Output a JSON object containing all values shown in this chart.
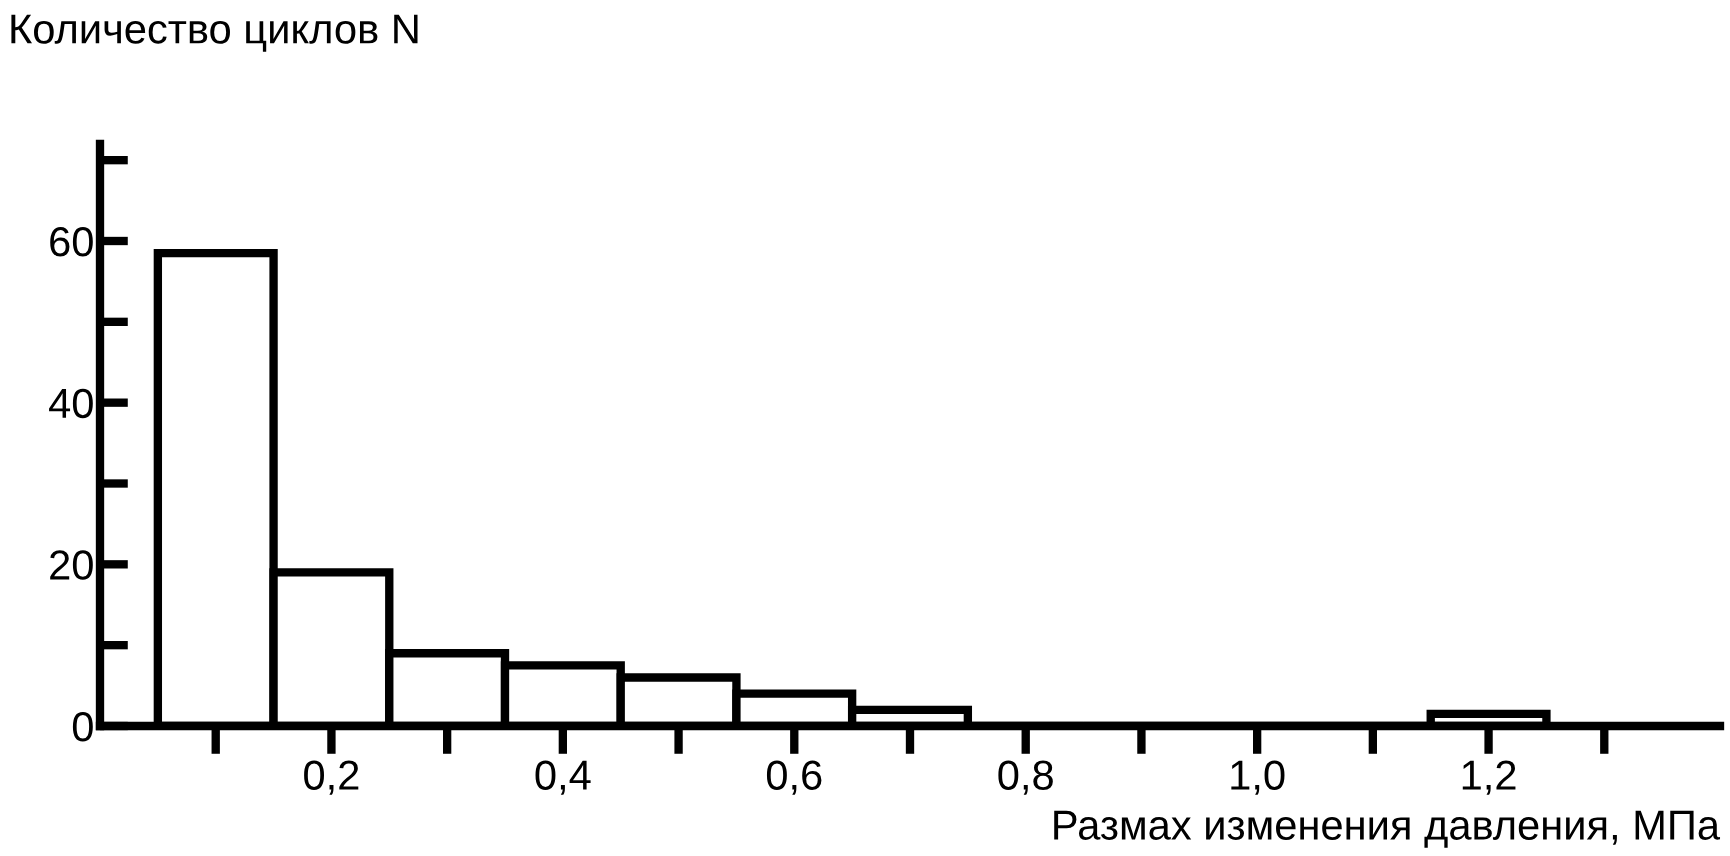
{
  "chart_data": {
    "type": "histogram",
    "xlabel": "Размах изменения давления, МПа",
    "ylabel": "Количество циклов N",
    "bins": [
      0.05,
      0.15,
      0.25,
      0.35,
      0.45,
      0.55,
      0.65,
      0.75,
      0.85,
      0.95,
      1.05,
      1.15,
      1.25
    ],
    "values": [
      58.5,
      19,
      9,
      7.5,
      6,
      4,
      2,
      0,
      0,
      0,
      0,
      1.5
    ],
    "color": "#000000",
    "xlim": [
      0,
      1.4
    ],
    "xticks": [
      {
        "value": 0.1,
        "label": null
      },
      {
        "value": 0.2,
        "label": "0,2"
      },
      {
        "value": 0.3,
        "label": null
      },
      {
        "value": 0.4,
        "label": "0,4"
      },
      {
        "value": 0.5,
        "label": null
      },
      {
        "value": 0.6,
        "label": "0,6"
      },
      {
        "value": 0.7,
        "label": null
      },
      {
        "value": 0.8,
        "label": "0,8"
      },
      {
        "value": 0.9,
        "label": null
      },
      {
        "value": 1.0,
        "label": "1,0"
      },
      {
        "value": 1.1,
        "label": null
      },
      {
        "value": 1.2,
        "label": "1,2"
      },
      {
        "value": 1.3,
        "label": null
      }
    ],
    "ylim": [
      0,
      72
    ],
    "yticks": [
      0,
      {
        "value": 10,
        "label": null
      },
      20,
      {
        "value": 30,
        "label": null
      },
      40,
      {
        "value": 50,
        "label": null
      },
      60,
      {
        "value": 70,
        "label": null
      }
    ],
    "grid": false,
    "legend": false
  }
}
